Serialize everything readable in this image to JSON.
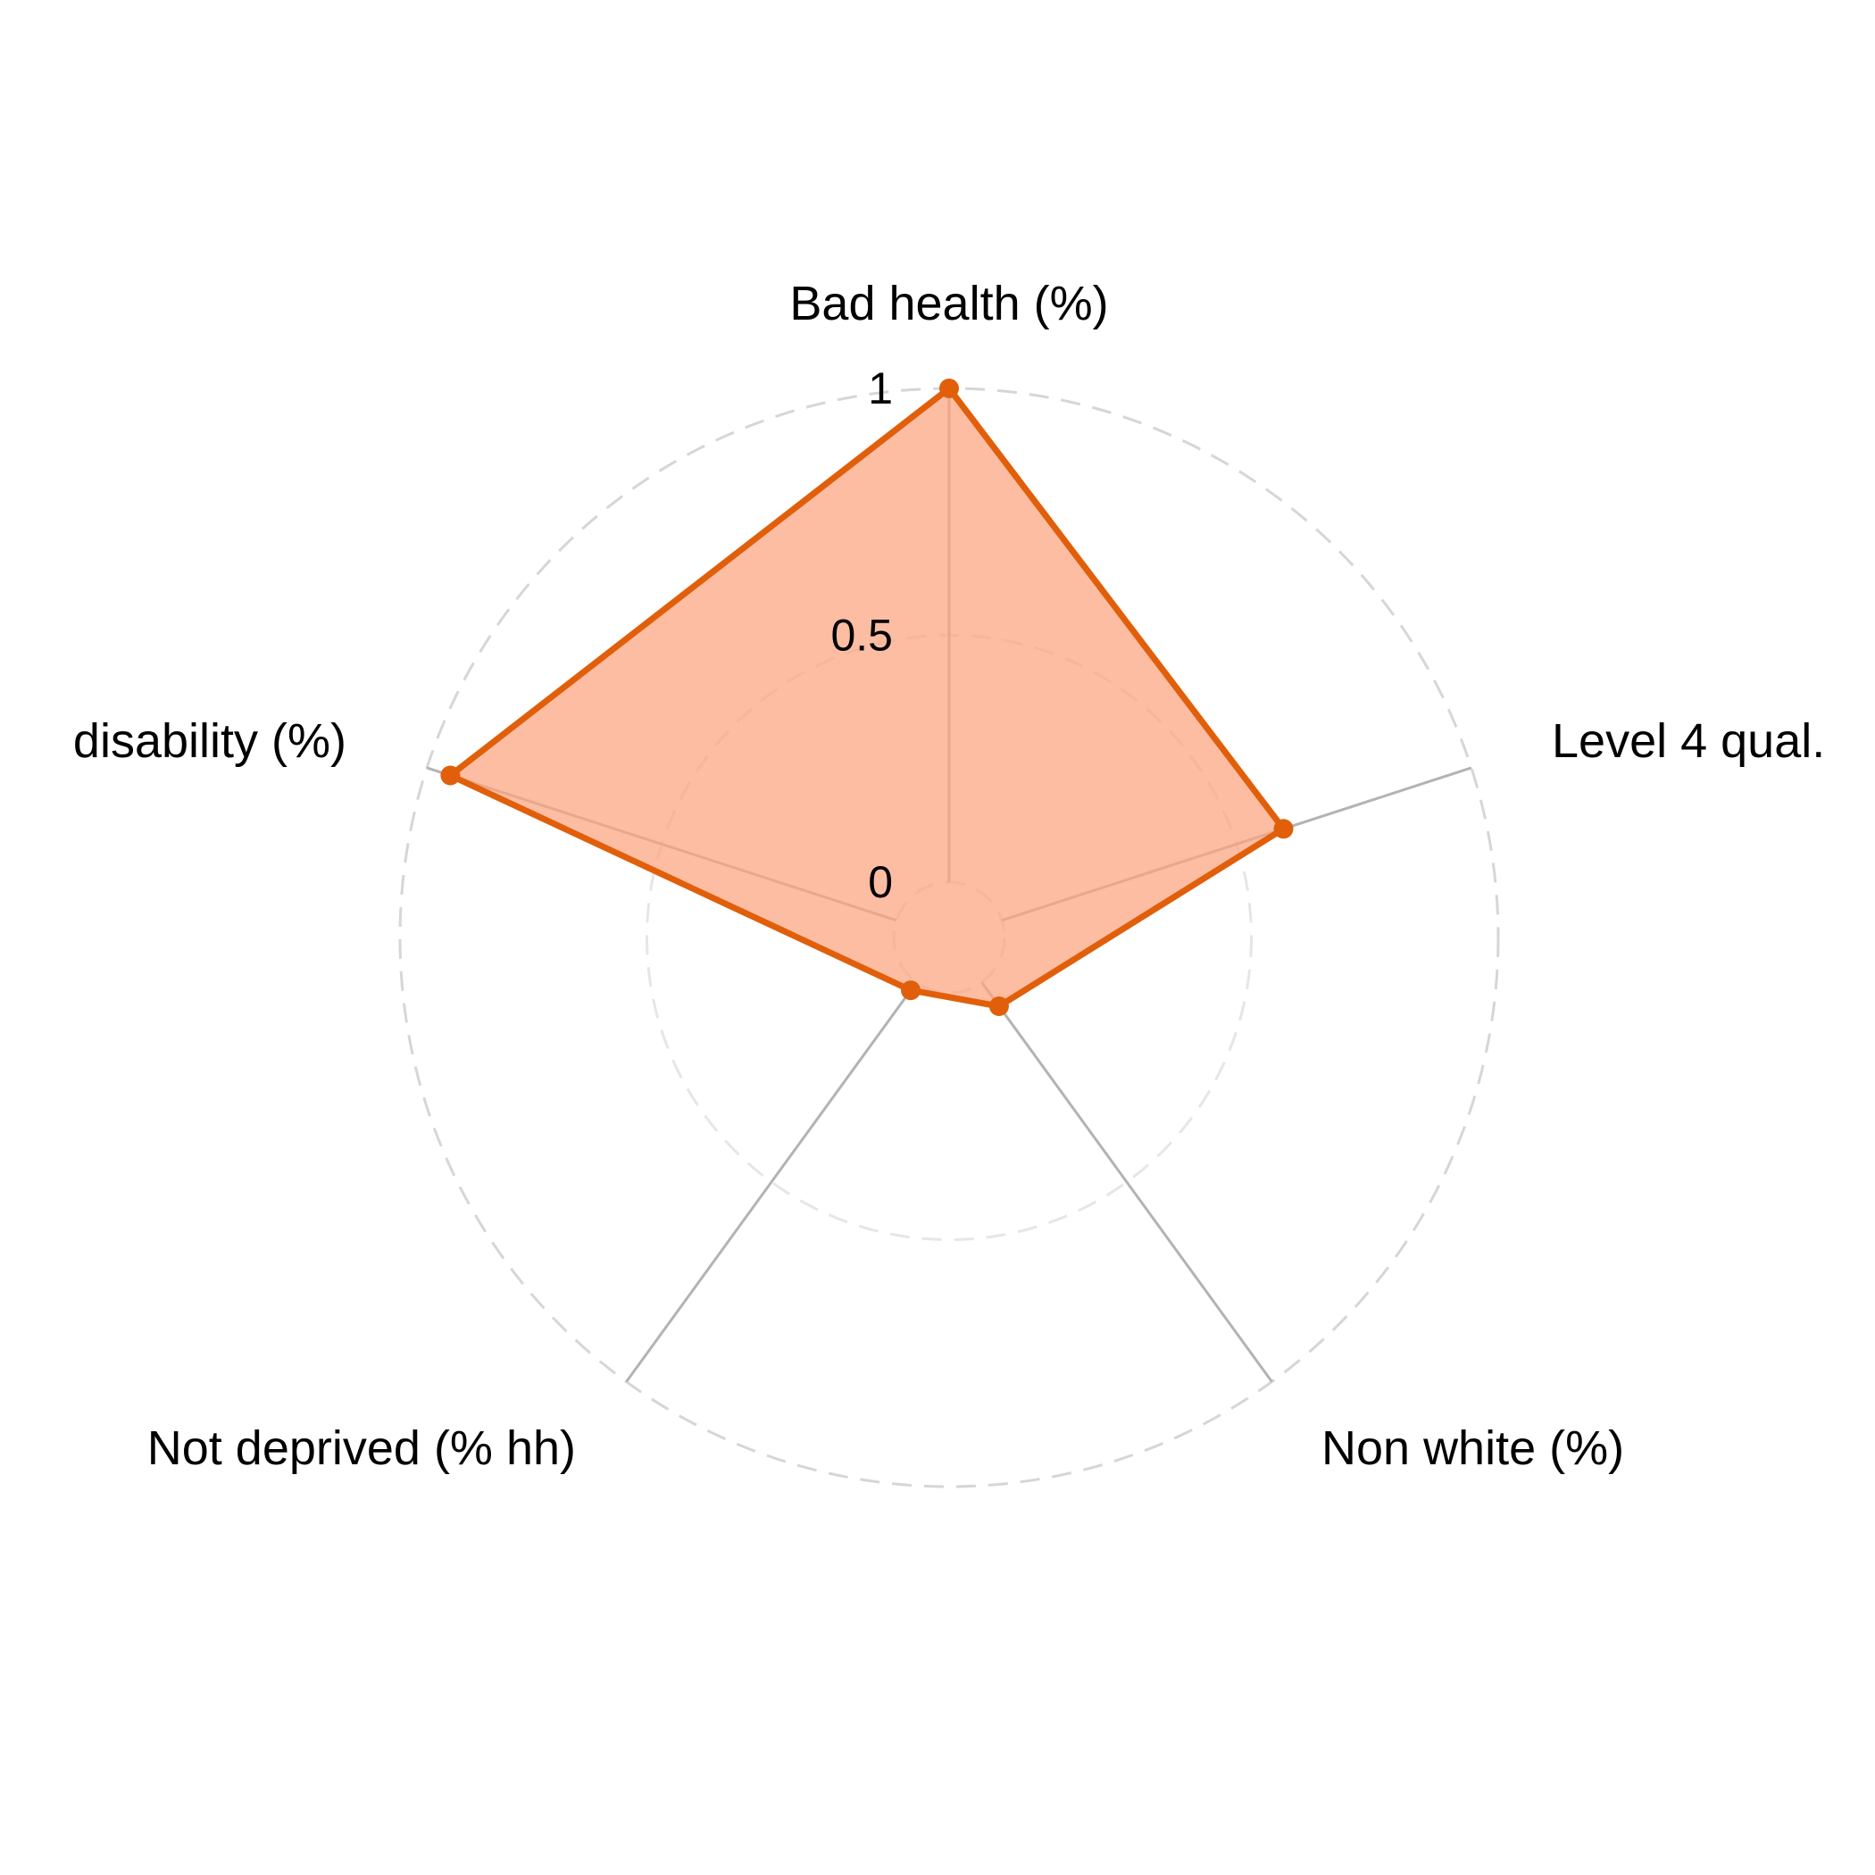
{
  "chart_data": {
    "type": "radar",
    "axes": [
      "Bad health (%)",
      "Level 4 qual.",
      "Non white (%)",
      "Not deprived (% hh)",
      "disability (%)"
    ],
    "series": [
      {
        "values": [
          1.0,
          0.6,
          0.06,
          0.02,
          0.95
        ]
      }
    ],
    "grid_values": [
      0,
      0.5,
      1
    ],
    "tick_labels": [
      "0",
      "0.5",
      "1"
    ],
    "rlim": [
      0,
      1
    ],
    "grid": true,
    "legend": "none",
    "colors": {
      "line": "#E15F0A",
      "fill": "#FBA47E",
      "spoke": "#B3B3B3",
      "grid_outer": "#D6D6D6",
      "grid_inner": "#E6E6E6"
    }
  }
}
